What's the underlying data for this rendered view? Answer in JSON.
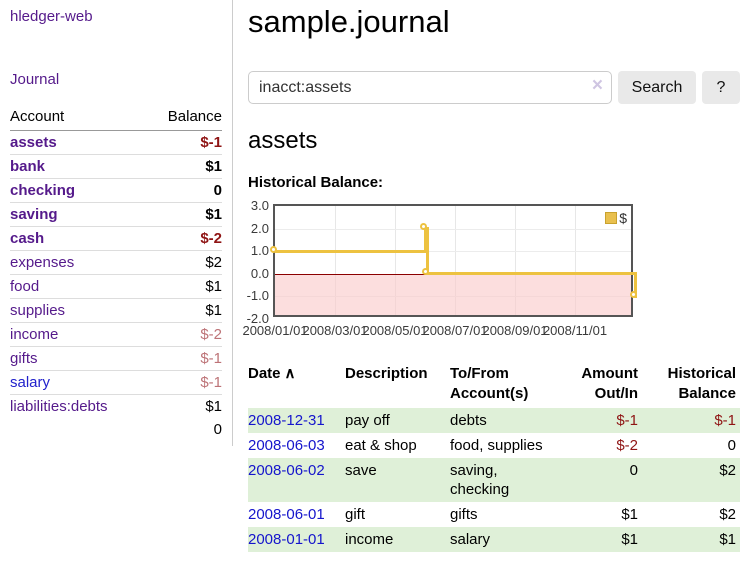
{
  "app": {
    "title": "hledger-web"
  },
  "colors": {
    "link_purple": "#551a8b",
    "link_blue": "#2222cc",
    "negative_strong": "#8f1414",
    "negative_muted": "#bd7377",
    "row_green": "#dff0d8",
    "series_yellow": "#edc240",
    "legend_swatch_fill": "#e9c04e",
    "legend_swatch_border": "#c9a22e",
    "zero_line": "#8b0000"
  },
  "sidebar": {
    "journal_link": "Journal",
    "table": {
      "headers": [
        "Account",
        "Balance"
      ],
      "rows": [
        {
          "account": "assets",
          "depth": 1,
          "bold": true,
          "link": "purple",
          "balance": "$-1",
          "bal_class": "neg-strong"
        },
        {
          "account": "bank",
          "depth": 2,
          "bold": true,
          "link": "purple",
          "balance": "$1",
          "bal_class": ""
        },
        {
          "account": "checking",
          "depth": 3,
          "bold": true,
          "link": "purple",
          "balance": "0",
          "bal_class": ""
        },
        {
          "account": "saving",
          "depth": 3,
          "bold": true,
          "link": "purple",
          "balance": "$1",
          "bal_class": ""
        },
        {
          "account": "cash",
          "depth": 2,
          "bold": true,
          "link": "purple",
          "balance": "$-2",
          "bal_class": "neg-strong"
        },
        {
          "account": "expenses",
          "depth": 1,
          "bold": false,
          "link": "purple",
          "balance": "$2",
          "bal_class": ""
        },
        {
          "account": "food",
          "depth": 2,
          "bold": false,
          "link": "purple",
          "balance": "$1",
          "bal_class": ""
        },
        {
          "account": "supplies",
          "depth": 2,
          "bold": false,
          "link": "purple",
          "balance": "$1",
          "bal_class": ""
        },
        {
          "account": "income",
          "depth": 1,
          "bold": false,
          "link": "purple",
          "balance": "$-2",
          "bal_class": "neg-muted"
        },
        {
          "account": "gifts",
          "depth": 2,
          "bold": false,
          "link": "purple",
          "balance": "$-1",
          "bal_class": "neg-muted"
        },
        {
          "account": "salary",
          "depth": 2,
          "bold": false,
          "link": "blue",
          "balance": "$-1",
          "bal_class": "neg-muted"
        },
        {
          "account": "liabilities:debts",
          "depth": 1,
          "bold": false,
          "link": "purple",
          "balance": "$1",
          "bal_class": ""
        }
      ],
      "total": "0"
    }
  },
  "main": {
    "title": "sample.journal",
    "search": {
      "value": "inacct:assets",
      "clear_icon": "×",
      "button_label": "Search",
      "help_label": "?"
    },
    "account_heading": "assets",
    "chart_label": "Historical Balance:",
    "table": {
      "headers": [
        {
          "line1": "Date",
          "line2": "",
          "align": "left",
          "sort_icon": "∧"
        },
        {
          "line1": "Description",
          "line2": "",
          "align": "left"
        },
        {
          "line1": "To/From",
          "line2": "Account(s)",
          "align": "left"
        },
        {
          "line1": "Amount",
          "line2": "Out/In",
          "align": "right"
        },
        {
          "line1": "Historical",
          "line2": "Balance",
          "align": "right"
        }
      ],
      "rows": [
        {
          "date": "2008-12-31",
          "description": "pay off",
          "accounts": "debts",
          "amount": "$-1",
          "amount_class": "neg-strong",
          "balance": "$-1",
          "balance_class": "neg-strong",
          "green": true
        },
        {
          "date": "2008-06-03",
          "description": "eat & shop",
          "accounts": "food, supplies",
          "amount": "$-2",
          "amount_class": "neg-strong",
          "balance": "0",
          "balance_class": "",
          "green": false
        },
        {
          "date": "2008-06-02",
          "description": "save",
          "accounts": "saving, checking",
          "amount": "0",
          "amount_class": "",
          "balance": "$2",
          "balance_class": "",
          "green": true
        },
        {
          "date": "2008-06-01",
          "description": "gift",
          "accounts": "gifts",
          "amount": "$1",
          "amount_class": "",
          "balance": "$2",
          "balance_class": "",
          "green": false
        },
        {
          "date": "2008-01-01",
          "description": "income",
          "accounts": "salary",
          "amount": "$1",
          "amount_class": "",
          "balance": "$1",
          "balance_class": "",
          "green": true
        }
      ]
    }
  },
  "chart_data": {
    "type": "line",
    "title": "Historical Balance",
    "step": true,
    "series": [
      {
        "name": "$",
        "color": "#edc240",
        "points": [
          [
            "2008-01-01",
            1
          ],
          [
            "2008-06-01",
            2
          ],
          [
            "2008-06-03",
            0
          ],
          [
            "2008-12-31",
            -1
          ]
        ]
      }
    ],
    "xticks": [
      "2008/01/01",
      "2008/03/01",
      "2008/05/01",
      "2008/07/01",
      "2008/09/01",
      "2008/11/01"
    ],
    "yticks": [
      "3.0",
      "2.0",
      "1.0",
      "0.0",
      "-1.0",
      "-2.0"
    ],
    "xrange": [
      "2008-01-01",
      "2009-01-01"
    ],
    "ylim": [
      -2,
      3
    ],
    "grid": true,
    "legend": {
      "label": "$",
      "position": "top-right"
    },
    "negative_region_shaded": true
  }
}
